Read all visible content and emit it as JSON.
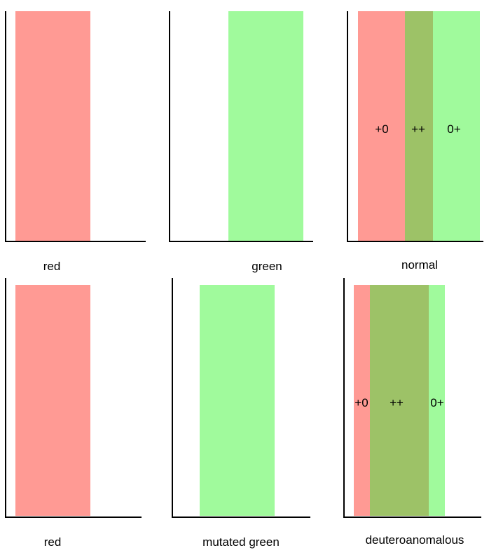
{
  "colors": {
    "red": "#ff9a94",
    "green": "#a0fa9c",
    "overlap": "#9dc267",
    "axis": "#000000"
  },
  "panels": [
    {
      "id": "red-top",
      "caption": "red",
      "zone_labels": []
    },
    {
      "id": "green-top",
      "caption": "green",
      "zone_labels": []
    },
    {
      "id": "normal",
      "caption": "normal",
      "zone_labels": [
        "+0",
        "++",
        "0+"
      ]
    },
    {
      "id": "red-bottom",
      "caption": "red",
      "zone_labels": []
    },
    {
      "id": "mutated-green",
      "caption": "mutated green",
      "zone_labels": []
    },
    {
      "id": "deuteroanomalous",
      "caption": "deuteroanomalous",
      "zone_labels": [
        "+0",
        "++",
        "0+"
      ]
    }
  ]
}
